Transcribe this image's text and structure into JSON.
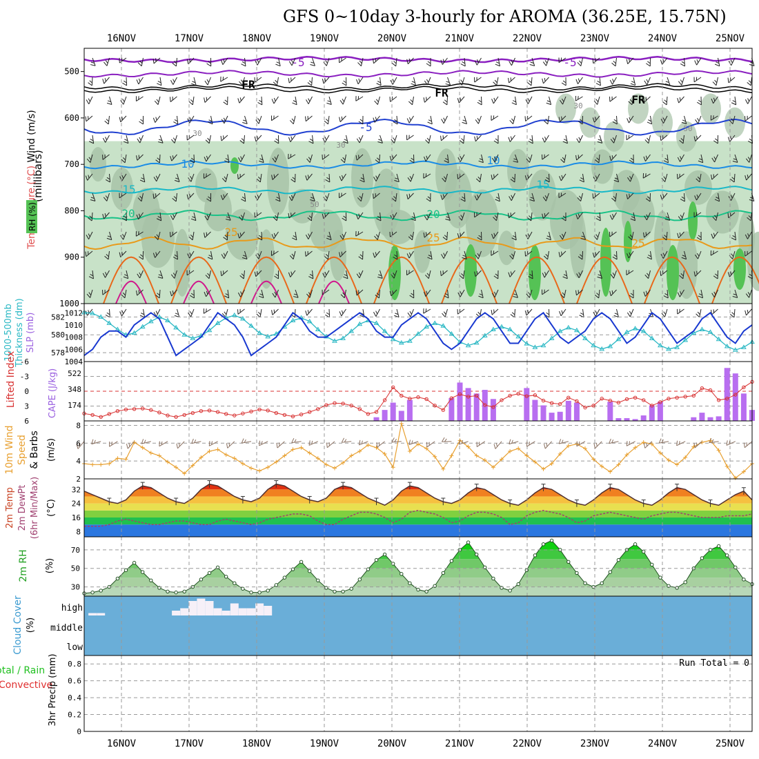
{
  "title": "GFS 0~10day 3-hourly for AROMA (36.25E, 15.75N)",
  "colors": {
    "rh_fill": "#c8e2c8",
    "rh_dark": "#a6c2a6",
    "rh_green": "#55c255",
    "purple": "#8a1fc0",
    "blue": "#2040d0",
    "lightblue": "#1a8ce6",
    "cyan": "#17b8c8",
    "teal": "#18c287",
    "orange": "#e89a1a",
    "darkorange": "#e8681a",
    "magenta": "#d0188c",
    "slp": "#1838d0",
    "thick": "#2ab8c4",
    "li": "#d83030",
    "cape": "#b86ef0",
    "wind": "#e8a030",
    "barb": "#8a7060",
    "cloud": "#6aaed8",
    "cloud_high": "#f6f0f8"
  },
  "dates": [
    "16NOV",
    "17NOV",
    "18NOV",
    "19NOV",
    "20NOV",
    "21NOV",
    "22NOV",
    "23NOV",
    "24NOV",
    "25NOV"
  ],
  "panels": {
    "upper": {
      "ylabel_a": "Wind (m/s)",
      "ylabel_b": "Temperature (°C)",
      "ylabel_c": "RH (%)",
      "ylabel_d": "(millibars)",
      "yticks": [
        "500",
        "600",
        "700",
        "800",
        "900",
        "1000"
      ],
      "labels": [
        {
          "t": "-5",
          "c": "purple"
        },
        {
          "t": "-5",
          "c": "purple"
        },
        {
          "t": "FR",
          "c": "black"
        },
        {
          "t": "FR",
          "c": "black"
        },
        {
          "t": "FR",
          "c": "black"
        },
        {
          "t": "-5",
          "c": "blue"
        },
        {
          "t": "10",
          "c": "lightblue"
        },
        {
          "t": "10",
          "c": "lightblue"
        },
        {
          "t": "15",
          "c": "cyan"
        },
        {
          "t": "15",
          "c": "cyan"
        },
        {
          "t": "20",
          "c": "teal"
        },
        {
          "t": "20",
          "c": "teal"
        },
        {
          "t": "25",
          "c": "orange"
        },
        {
          "t": "25",
          "c": "orange"
        },
        {
          "t": "25",
          "c": "orange"
        },
        {
          "t": "30",
          "c": "gray"
        },
        {
          "t": "30",
          "c": "gray"
        },
        {
          "t": "50",
          "c": "gray"
        },
        {
          "t": "30",
          "c": "gray"
        },
        {
          "t": "50",
          "c": "gray"
        }
      ]
    },
    "thickness": {
      "ylabel_a": "1000-500mb",
      "ylabel_b": "Thickness (dm)",
      "ylabel_c": "SLP (mb)",
      "left_ticks": [
        "582",
        "580",
        "578"
      ],
      "right_ticks": [
        "1012",
        "1010",
        "1008",
        "1006",
        "1004"
      ]
    },
    "cape": {
      "ylabel_a": "Lifted Index",
      "ylabel_b": "CAPE (J/kg)",
      "left_ticks": [
        "-6",
        "-3",
        "0",
        "3",
        "6"
      ],
      "right_ticks": [
        "522",
        "348",
        "174"
      ]
    },
    "wind10": {
      "ylabel_a": "10m Wind",
      "ylabel_b": "Speed",
      "ylabel_c": "& Barbs",
      "ylabel_d": "(m/s)",
      "yticks": [
        "8",
        "6",
        "4",
        "2"
      ]
    },
    "temp2m": {
      "ylabel_a": "2m Temp",
      "ylabel_b": "2m DewPt",
      "ylabel_c": "(6hr Min/Max)",
      "ylabel_d": "(°C)",
      "yticks": [
        "32",
        "24",
        "16",
        "8"
      ]
    },
    "rh2m": {
      "ylabel_a": "2m RH",
      "ylabel_b": "(%)",
      "yticks": [
        "70",
        "50",
        "30"
      ]
    },
    "cloud": {
      "ylabel_a": "Cloud Cover",
      "ylabel_b": "(%)",
      "levels": [
        "high",
        "middle",
        "low"
      ]
    },
    "precip": {
      "ylabel_a": "Total / Rain",
      "ylabel_b": "Convective",
      "ylabel_c": "3hr Precip (mm)",
      "yticks": [
        "0.8",
        "0.6",
        "0.4",
        "0.2",
        "0"
      ],
      "run_total": "Run Total = 0"
    }
  },
  "chart_data": [
    {
      "type": "line",
      "name_panel": "thickness_slp",
      "series": [
        {
          "name": "SLP (mb)",
          "values": [
            1005,
            1006,
            1008,
            1009,
            1009,
            1008,
            1010,
            1011,
            1012,
            1011,
            1008,
            1005,
            1006,
            1007,
            1008,
            1010,
            1012,
            1011,
            1010,
            1008,
            1005,
            1006,
            1007,
            1008,
            1010,
            1012,
            1011,
            1009,
            1008,
            1008,
            1009,
            1010,
            1011,
            1012,
            1011,
            1009,
            1008,
            1008,
            1010,
            1011,
            1012,
            1011,
            1009,
            1007,
            1006,
            1007,
            1009,
            1011,
            1012,
            1011,
            1009,
            1007,
            1007,
            1009,
            1011,
            1012,
            1010,
            1008,
            1007,
            1008,
            1009,
            1011,
            1012,
            1011,
            1009,
            1007,
            1008,
            1010,
            1012,
            1011,
            1009,
            1007,
            1008,
            1009,
            1011,
            1012,
            1010,
            1008,
            1007,
            1009,
            1010
          ]
        },
        {
          "name": "Thickness (dm)",
          "values": [
            582.5,
            582.4,
            582,
            581.3,
            580.6,
            580,
            580.2,
            580.9,
            581.5,
            582,
            581.6,
            580.8,
            580,
            579.6,
            579.9,
            580.5,
            581.3,
            581.9,
            582.2,
            581.8,
            581,
            580.2,
            579.8,
            580.1,
            580.9,
            581.6,
            581.9,
            581.5,
            580.6,
            579.8,
            579.3,
            579.6,
            580.4,
            581.2,
            581.6,
            581.3,
            580.4,
            579.5,
            579.1,
            579.3,
            580.1,
            580.9,
            581.3,
            581,
            580.1,
            579.2,
            578.8,
            579.1,
            579.9,
            580.6,
            580.9,
            580.6,
            579.8,
            579,
            578.6,
            578.8,
            579.6,
            580.4,
            580.8,
            580.5,
            579.6,
            578.8,
            578.4,
            578.7,
            579.5,
            580.3,
            580.7,
            580.4,
            579.6,
            578.8,
            578.4,
            578.6,
            579.4,
            580.2,
            580.6,
            580.3,
            579.5,
            578.7,
            578.3,
            578.6,
            579.2
          ]
        }
      ]
    },
    {
      "type": "bar",
      "name_panel": "cape_li",
      "series": [
        {
          "name": "CAPE (J/kg)",
          "values": [
            0,
            0,
            0,
            0,
            0,
            0,
            0,
            0,
            0,
            0,
            0,
            0,
            0,
            0,
            0,
            0,
            0,
            0,
            0,
            0,
            0,
            0,
            0,
            0,
            0,
            0,
            0,
            0,
            0,
            0,
            0,
            0,
            0,
            0,
            0,
            40,
            120,
            200,
            110,
            230,
            0,
            0,
            0,
            0,
            250,
            420,
            360,
            300,
            340,
            240,
            0,
            0,
            0,
            360,
            230,
            170,
            90,
            100,
            220,
            200,
            0,
            0,
            0,
            210,
            30,
            30,
            20,
            60,
            170,
            210,
            0,
            0,
            0,
            40,
            90,
            40,
            50,
            580,
            520,
            300,
            120
          ]
        },
        {
          "name": "Lifted Index",
          "values": [
            4.5,
            4.8,
            5.2,
            4.6,
            4,
            3.7,
            3.6,
            3.5,
            3.8,
            4.3,
            4.9,
            5.2,
            4.8,
            4.4,
            4,
            3.9,
            4.2,
            4.6,
            4.9,
            4.5,
            4.1,
            3.7,
            3.9,
            4.4,
            4.8,
            5.1,
            4.7,
            4.2,
            3.6,
            2.8,
            2.4,
            2.5,
            2.9,
            3.6,
            4.6,
            4.2,
            1.8,
            -0.8,
            0.9,
            1.5,
            1.2,
            1.6,
            2.9,
            3.8,
            1.4,
            0.6,
            1.1,
            0.9,
            2.8,
            3.2,
            1.8,
            0.9,
            0.5,
            1,
            0.8,
            1.9,
            2.4,
            2.6,
            1.3,
            2,
            3.3,
            2.9,
            1.5,
            1.9,
            2.3,
            1.6,
            1.3,
            1.8,
            2.9,
            2.2,
            1.5,
            1.3,
            1.1,
            0.9,
            -0.6,
            -0.2,
            1.8,
            1.5,
            0.7,
            -0.8,
            -1.9
          ]
        }
      ]
    },
    {
      "type": "line",
      "name_panel": "wind10",
      "series": [
        {
          "name": "10m Wind Speed (m/s)",
          "values": [
            3.7,
            3.6,
            3.6,
            3.7,
            4.3,
            4.2,
            6.1,
            5.5,
            4.9,
            4.6,
            3.9,
            3.3,
            2.6,
            3.5,
            4.4,
            5.1,
            5.3,
            4.7,
            4.3,
            3.7,
            3.2,
            2.9,
            3.3,
            3.9,
            4.6,
            5.3,
            5.5,
            4.9,
            4.3,
            3.6,
            3.2,
            3.8,
            4.6,
            5.1,
            5.8,
            5.5,
            4.8,
            3.3,
            8.2,
            5.1,
            5.9,
            5.4,
            4.5,
            3.1,
            4.6,
            6.3,
            5.6,
            4.6,
            4.1,
            3.3,
            4.2,
            5.1,
            5.4,
            4.6,
            3.9,
            3.1,
            3.7,
            4.8,
            5.7,
            5.9,
            5.4,
            4.2,
            3.4,
            2.8,
            3.6,
            4.7,
            5.5,
            6.1,
            5.9,
            4.9,
            4.1,
            3.6,
            4.4,
            5.6,
            6.1,
            6.3,
            5.2,
            3.4,
            2.1,
            2.8,
            3.7
          ]
        }
      ]
    },
    {
      "type": "line",
      "name_panel": "temp2m",
      "series": [
        {
          "name": "2m Temp (°C)",
          "values": [
            31,
            29,
            27,
            25,
            24,
            26,
            31,
            34,
            33,
            30,
            27,
            25,
            24,
            27,
            32,
            35,
            34,
            31,
            28,
            26,
            25,
            27,
            32,
            35,
            34,
            31,
            28,
            26,
            25,
            27,
            32,
            34,
            33,
            30,
            27,
            25,
            23,
            26,
            31,
            34,
            33,
            30,
            27,
            25,
            24,
            26,
            30,
            33,
            32,
            29,
            26,
            24,
            23,
            26,
            30,
            33,
            32,
            29,
            26,
            24,
            23,
            26,
            30,
            33,
            32,
            29,
            26,
            24,
            23,
            26,
            30,
            33,
            32,
            29,
            26,
            24,
            23,
            26,
            29,
            31,
            26
          ]
        },
        {
          "name": "2m DewPt (°C)",
          "values": [
            11,
            11,
            11,
            12,
            14,
            15,
            14,
            13,
            12,
            12,
            13,
            14,
            14,
            13,
            12,
            12,
            14,
            15,
            14,
            13,
            12,
            13,
            15,
            16,
            17,
            18,
            18,
            17,
            14,
            12,
            12,
            15,
            17,
            19,
            19,
            18,
            16,
            13,
            15,
            19,
            20,
            19,
            18,
            16,
            13,
            14,
            17,
            19,
            19,
            18,
            16,
            12,
            13,
            17,
            19,
            20,
            19,
            18,
            16,
            13,
            14,
            17,
            18,
            19,
            18,
            17,
            16,
            15,
            17,
            18,
            19,
            19,
            18,
            17,
            16,
            16,
            16,
            17,
            17,
            17,
            18
          ]
        }
      ]
    },
    {
      "type": "area",
      "name_panel": "rh2m",
      "series": [
        {
          "name": "2m RH (%)",
          "values": [
            23,
            24,
            26,
            30,
            39,
            48,
            56,
            46,
            37,
            29,
            25,
            24,
            25,
            30,
            38,
            45,
            51,
            41,
            34,
            28,
            24,
            24,
            26,
            32,
            40,
            49,
            57,
            47,
            37,
            29,
            25,
            25,
            28,
            38,
            49,
            59,
            65,
            55,
            44,
            34,
            27,
            25,
            31,
            45,
            58,
            70,
            78,
            65,
            51,
            39,
            29,
            26,
            33,
            48,
            64,
            76,
            80,
            70,
            57,
            45,
            34,
            30,
            34,
            46,
            59,
            70,
            76,
            68,
            54,
            40,
            31,
            29,
            35,
            50,
            61,
            70,
            74,
            64,
            51,
            38,
            33
          ]
        }
      ]
    },
    {
      "type": "bar",
      "name_panel": "cloud_high",
      "series": [
        {
          "name": "high cloud (%)",
          "values": [
            0,
            5,
            5,
            0,
            0,
            0,
            0,
            0,
            0,
            0,
            0,
            10,
            15,
            30,
            35,
            30,
            15,
            10,
            25,
            15,
            15,
            25,
            20,
            0,
            0,
            0,
            0,
            0,
            0,
            0,
            0,
            0,
            0,
            0,
            0,
            0,
            0,
            0,
            0,
            0,
            0,
            0,
            0,
            0,
            0,
            0,
            0,
            0,
            0,
            0,
            0,
            0,
            0,
            0,
            0,
            0,
            0,
            0,
            0,
            0,
            0,
            0,
            0,
            0,
            0,
            0,
            0,
            0,
            0,
            0,
            0,
            0,
            0,
            0,
            0,
            0,
            0,
            0,
            0,
            0,
            0
          ]
        }
      ]
    },
    {
      "type": "bar",
      "name_panel": "precip",
      "ylim": [
        0,
        0.9
      ],
      "series": [
        {
          "name": "3hr Precip (mm)",
          "values": [
            0,
            0,
            0,
            0,
            0,
            0,
            0,
            0,
            0,
            0,
            0,
            0,
            0,
            0,
            0,
            0,
            0,
            0,
            0,
            0,
            0,
            0,
            0,
            0,
            0,
            0,
            0,
            0,
            0,
            0,
            0,
            0,
            0,
            0,
            0,
            0,
            0,
            0,
            0,
            0,
            0,
            0,
            0,
            0,
            0,
            0,
            0,
            0,
            0,
            0,
            0,
            0,
            0,
            0,
            0,
            0,
            0,
            0,
            0,
            0,
            0,
            0,
            0,
            0,
            0,
            0,
            0,
            0,
            0,
            0,
            0,
            0,
            0,
            0,
            0,
            0,
            0,
            0,
            0,
            0,
            0
          ]
        }
      ]
    }
  ]
}
